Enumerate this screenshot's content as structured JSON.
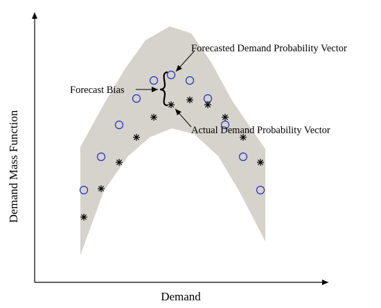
{
  "diagram": {
    "x_axis_label": "Demand",
    "y_axis_label": "Demand Mass Function",
    "annotations": {
      "forecasted": "Forecasted Demand Probability Vector",
      "actual": "Actual Demand Probability Vector",
      "bias": "Forecast Bias"
    },
    "legend_markers": {
      "forecasted": "circle",
      "actual": "asterisk"
    },
    "colors": {
      "band": "#d6d2cc",
      "forecast_marker": "#1f2fbf",
      "actual_marker": "#000000",
      "axes": "#000000"
    }
  }
}
